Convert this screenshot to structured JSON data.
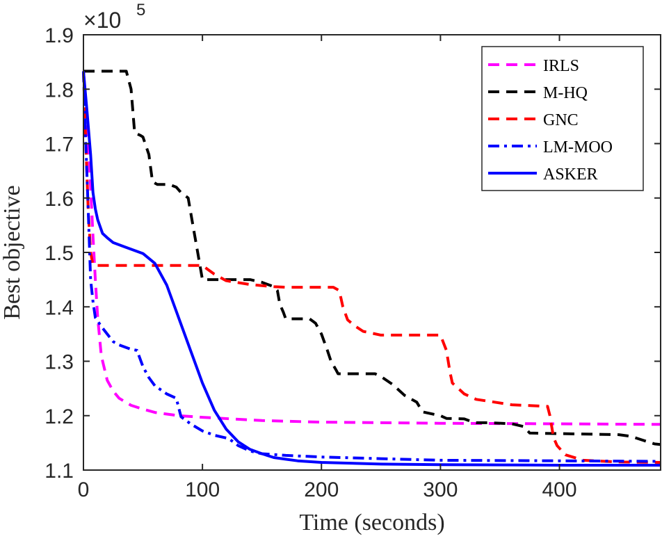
{
  "chart_data": {
    "type": "line",
    "xlabel": "Time (seconds)",
    "ylabel": "Best objective",
    "xlim": [
      0,
      485
    ],
    "ylim": [
      1.1,
      1.9
    ],
    "xticks": [
      0,
      100,
      200,
      300,
      400
    ],
    "xtick_labels": [
      "0",
      "100",
      "200",
      "300",
      "400"
    ],
    "yticks": [
      1.1,
      1.2,
      1.3,
      1.4,
      1.5,
      1.6,
      1.7,
      1.8,
      1.9
    ],
    "ytick_labels": [
      "1.1",
      "1.2",
      "1.3",
      "1.4",
      "1.5",
      "1.6",
      "1.7",
      "1.8",
      "1.9"
    ],
    "y_multiplier": {
      "base": "×10",
      "exponent": "5"
    },
    "grid": false,
    "legend_position": "top-right",
    "series": [
      {
        "name": "IRLS",
        "color": "#ff00ff",
        "style": "dashed",
        "x": [
          0,
          3,
          6,
          8,
          10,
          12,
          15,
          20,
          25,
          30,
          40,
          50,
          60,
          80,
          100,
          150,
          200,
          300,
          400,
          485
        ],
        "y": [
          1.833,
          1.75,
          1.62,
          1.53,
          1.45,
          1.38,
          1.31,
          1.265,
          1.245,
          1.232,
          1.219,
          1.212,
          1.206,
          1.2,
          1.197,
          1.191,
          1.188,
          1.186,
          1.185,
          1.184
        ]
      },
      {
        "name": "M-HQ",
        "color": "#000000",
        "style": "dashed",
        "x": [
          0,
          36,
          40,
          43,
          48,
          50,
          55,
          58,
          62,
          72,
          78,
          82,
          88,
          92,
          96,
          100,
          115,
          130,
          140,
          150,
          160,
          163,
          165,
          168,
          170,
          190,
          195,
          200,
          205,
          208,
          212,
          214,
          220,
          245,
          250,
          260,
          265,
          270,
          280,
          285,
          300,
          305,
          320,
          325,
          330,
          340,
          360,
          370,
          375,
          450,
          460,
          470,
          480,
          485
        ],
        "y": [
          1.833,
          1.833,
          1.8,
          1.72,
          1.715,
          1.712,
          1.68,
          1.63,
          1.625,
          1.625,
          1.62,
          1.61,
          1.6,
          1.55,
          1.5,
          1.45,
          1.45,
          1.45,
          1.45,
          1.445,
          1.437,
          1.43,
          1.405,
          1.39,
          1.378,
          1.378,
          1.37,
          1.35,
          1.32,
          1.3,
          1.285,
          1.277,
          1.277,
          1.277,
          1.272,
          1.257,
          1.247,
          1.237,
          1.225,
          1.207,
          1.2,
          1.195,
          1.194,
          1.19,
          1.187,
          1.187,
          1.185,
          1.18,
          1.168,
          1.165,
          1.162,
          1.155,
          1.148,
          1.147
        ]
      },
      {
        "name": "GNC",
        "color": "#ff0000",
        "style": "dashed",
        "x": [
          0,
          2,
          4,
          6,
          8,
          10,
          100,
          110,
          120,
          140,
          160,
          170,
          210,
          215,
          218,
          222,
          228,
          235,
          250,
          300,
          305,
          308,
          310,
          315,
          320,
          330,
          345,
          360,
          390,
          392,
          395,
          398,
          405,
          420,
          450,
          485
        ],
        "y": [
          1.833,
          1.7,
          1.58,
          1.5,
          1.477,
          1.476,
          1.476,
          1.46,
          1.448,
          1.441,
          1.437,
          1.436,
          1.436,
          1.43,
          1.4,
          1.376,
          1.365,
          1.355,
          1.348,
          1.348,
          1.32,
          1.28,
          1.26,
          1.25,
          1.24,
          1.23,
          1.225,
          1.22,
          1.217,
          1.2,
          1.16,
          1.145,
          1.128,
          1.118,
          1.115,
          1.114
        ]
      },
      {
        "name": "LM-MOO",
        "color": "#0000ff",
        "style": "dashdot",
        "x": [
          0,
          2,
          4,
          6,
          8,
          10,
          15,
          20,
          25,
          30,
          40,
          45,
          50,
          55,
          60,
          70,
          78,
          82,
          90,
          100,
          110,
          118,
          122,
          130,
          140,
          150,
          170,
          200,
          250,
          300,
          400,
          485
        ],
        "y": [
          1.833,
          1.7,
          1.58,
          1.45,
          1.41,
          1.38,
          1.364,
          1.35,
          1.336,
          1.33,
          1.322,
          1.32,
          1.29,
          1.27,
          1.255,
          1.24,
          1.232,
          1.198,
          1.185,
          1.172,
          1.164,
          1.16,
          1.158,
          1.145,
          1.135,
          1.13,
          1.127,
          1.124,
          1.121,
          1.118,
          1.117,
          1.116
        ]
      },
      {
        "name": "ASKER",
        "color": "#0000ff",
        "style": "solid",
        "x": [
          0,
          3,
          6,
          8,
          10,
          12,
          16,
          20,
          25,
          35,
          50,
          60,
          70,
          80,
          90,
          100,
          110,
          120,
          130,
          140,
          150,
          160,
          170,
          180,
          200,
          250,
          300,
          400,
          485
        ],
        "y": [
          1.833,
          1.76,
          1.68,
          1.61,
          1.58,
          1.56,
          1.535,
          1.527,
          1.518,
          1.51,
          1.498,
          1.48,
          1.44,
          1.38,
          1.32,
          1.26,
          1.21,
          1.175,
          1.152,
          1.138,
          1.13,
          1.123,
          1.12,
          1.117,
          1.114,
          1.111,
          1.11,
          1.109,
          1.109
        ]
      }
    ]
  }
}
